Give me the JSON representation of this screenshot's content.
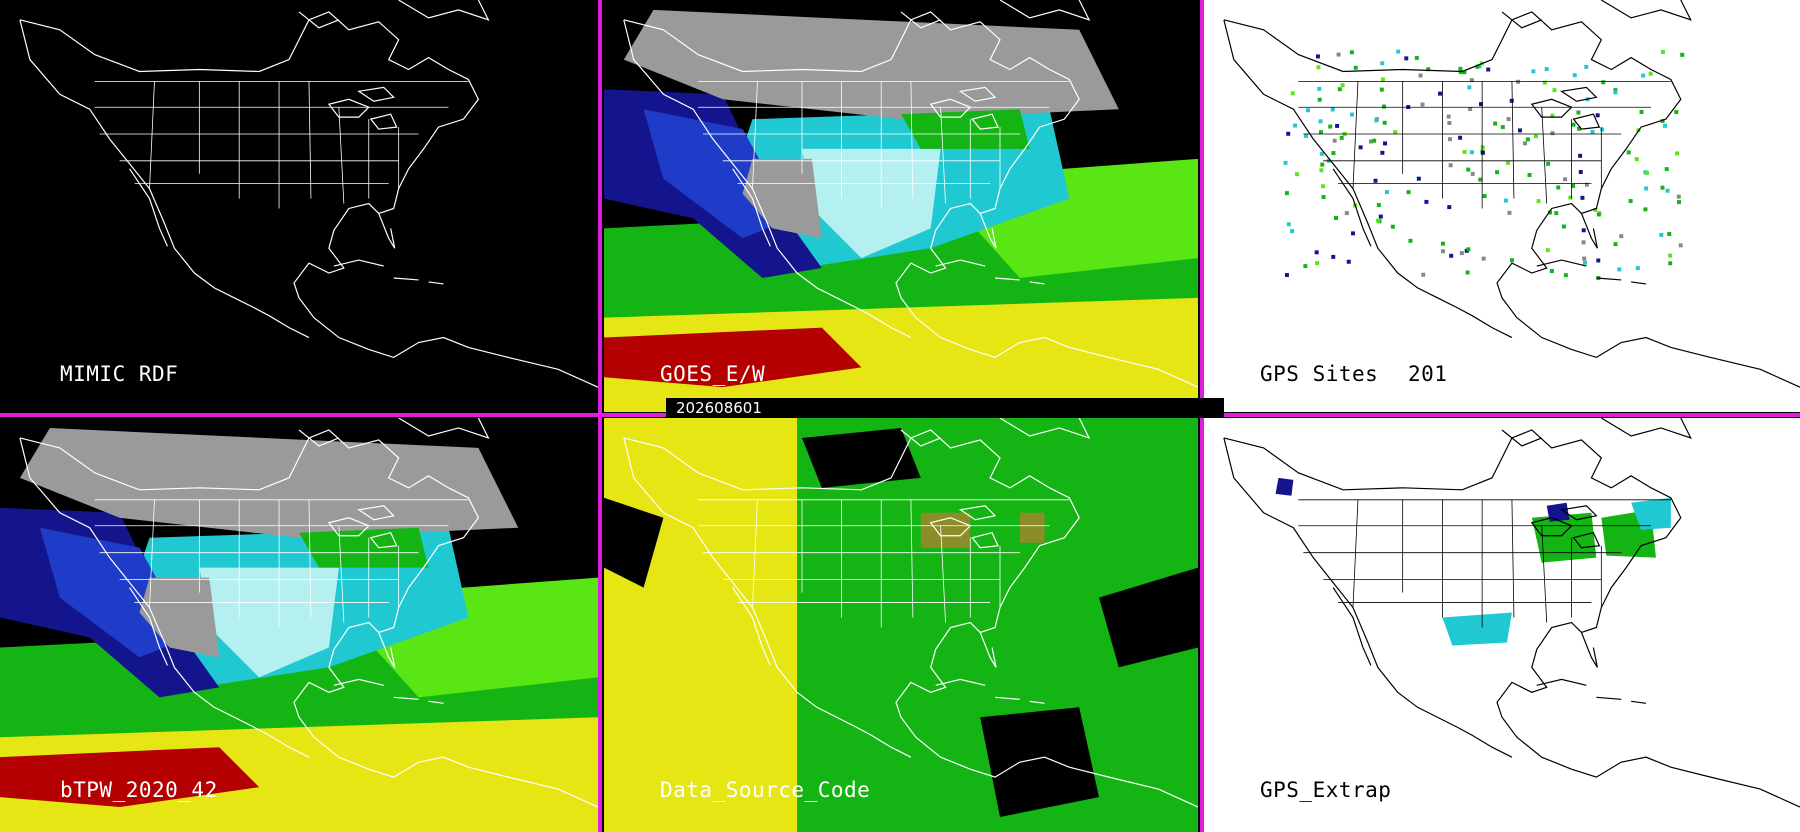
{
  "panels": {
    "mimic": {
      "title": "MIMIC RDF"
    },
    "goes": {
      "title": "GOES_E/W"
    },
    "gps": {
      "title": "GPS Sites",
      "count": "201"
    },
    "bpw": {
      "title": "bTPW_2020_42"
    },
    "source": {
      "title": "Data_Source_Code"
    },
    "extrap": {
      "title": "GPS_Extrap"
    }
  },
  "timestamp": "202608601",
  "colors": {
    "separator": "#e01ee0",
    "map_lines_dark": "#ffffff",
    "map_lines_light": "#000000",
    "tpw_gray": "#9a9a9a",
    "tpw_navy": "#14148c",
    "tpw_blue": "#1e3cc8",
    "tpw_cyan": "#20c8d2",
    "tpw_lightcyan": "#b4f0f0",
    "tpw_green": "#14b414",
    "tpw_lime": "#5ae614",
    "tpw_olive": "#a0a000",
    "tpw_yellow": "#e6e614",
    "tpw_red": "#b40000",
    "source_yellow": "#e6e614",
    "source_green": "#14b414",
    "source_olive": "#8c8c28"
  }
}
